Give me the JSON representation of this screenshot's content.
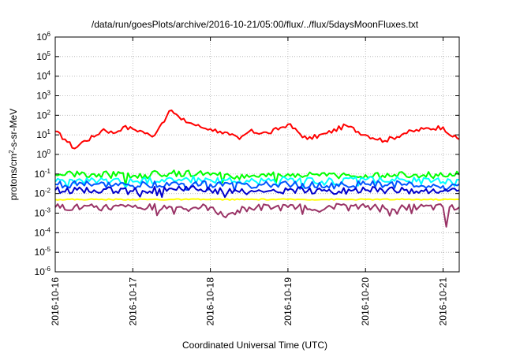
{
  "chart_data": {
    "type": "line",
    "title": "/data/run/goesPlots/archive/2016-10-21/05:00/flux/../flux/5daysMoonFluxes.txt",
    "xlabel": "Coordinated Universal Time (UTC)",
    "ylabel": {
      "pre": "protons/cm",
      "sup": "2",
      "post": "-s-sr-MeV"
    },
    "x_scale": "time",
    "y_scale": "log",
    "xlim": [
      "2016-10-16T00:00",
      "2016-10-21T05:00"
    ],
    "ylim": [
      1e-06,
      1000000.0
    ],
    "grid": true,
    "legend": "none",
    "x_tick_labels": [
      "2016-10-16",
      "2016-10-17",
      "2016-10-18",
      "2016-10-19",
      "2016-10-20",
      "2016-10-21"
    ],
    "y_tick_labels": [
      {
        "base": "10",
        "exp": "-6"
      },
      {
        "base": "10",
        "exp": "-5"
      },
      {
        "base": "10",
        "exp": "-4"
      },
      {
        "base": "10",
        "exp": "-3"
      },
      {
        "base": "10",
        "exp": "-2"
      },
      {
        "base": "10",
        "exp": "-1"
      },
      {
        "base": "10",
        "exp": "0"
      },
      {
        "base": "10",
        "exp": "1"
      },
      {
        "base": "10",
        "exp": "2"
      },
      {
        "base": "10",
        "exp": "3"
      },
      {
        "base": "10",
        "exp": "4"
      },
      {
        "base": "10",
        "exp": "5"
      },
      {
        "base": "10",
        "exp": "6"
      }
    ],
    "series": [
      {
        "color": "#ff0000",
        "x": [
          "2016-10-16T00:00",
          "2016-10-16T03:00",
          "2016-10-16T06:00",
          "2016-10-16T09:00",
          "2016-10-16T12:00",
          "2016-10-16T15:00",
          "2016-10-16T18:00",
          "2016-10-16T21:00",
          "2016-10-17T00:00",
          "2016-10-17T03:00",
          "2016-10-17T06:00",
          "2016-10-17T09:00",
          "2016-10-17T10:30",
          "2016-10-17T12:00",
          "2016-10-17T15:00",
          "2016-10-17T18:00",
          "2016-10-17T21:00",
          "2016-10-18T00:00",
          "2016-10-18T03:00",
          "2016-10-18T06:00",
          "2016-10-18T09:00",
          "2016-10-18T12:00",
          "2016-10-18T18:00",
          "2016-10-19T00:00",
          "2016-10-19T06:00",
          "2016-10-19T12:00",
          "2016-10-19T18:00",
          "2016-10-20T00:00",
          "2016-10-20T06:00",
          "2016-10-20T12:00",
          "2016-10-20T18:00",
          "2016-10-21T00:00",
          "2016-10-21T03:00",
          "2016-10-21T05:00"
        ],
        "y": [
          15,
          6,
          2,
          5,
          8,
          20,
          12,
          25,
          20,
          15,
          8,
          40,
          90,
          180,
          60,
          40,
          25,
          20,
          15,
          10,
          6,
          15,
          12,
          35,
          6,
          12,
          30,
          10,
          5,
          12,
          20,
          25,
          8,
          6
        ]
      },
      {
        "color": "#00ff00",
        "x": [
          "2016-10-16T00:00",
          "2016-10-16T12:00",
          "2016-10-17T00:00",
          "2016-10-17T12:00",
          "2016-10-18T00:00",
          "2016-10-18T12:00",
          "2016-10-19T00:00",
          "2016-10-19T12:00",
          "2016-10-20T00:00",
          "2016-10-20T12:00",
          "2016-10-21T00:00",
          "2016-10-21T05:00"
        ],
        "y": [
          0.09,
          0.1,
          0.08,
          0.11,
          0.09,
          0.07,
          0.1,
          0.08,
          0.09,
          0.1,
          0.08,
          0.09
        ]
      },
      {
        "color": "#00ffff",
        "x": [
          "2016-10-16T00:00",
          "2016-10-16T12:00",
          "2016-10-17T00:00",
          "2016-10-17T12:00",
          "2016-10-18T00:00",
          "2016-10-18T12:00",
          "2016-10-19T00:00",
          "2016-10-19T12:00",
          "2016-10-20T00:00",
          "2016-10-20T12:00",
          "2016-10-21T00:00",
          "2016-10-21T05:00"
        ],
        "y": [
          0.04,
          0.05,
          0.04,
          0.06,
          0.05,
          0.04,
          0.05,
          0.04,
          0.05,
          0.05,
          0.04,
          0.05
        ]
      },
      {
        "color": "#0055ff",
        "x": [
          "2016-10-16T00:00",
          "2016-10-16T12:00",
          "2016-10-17T00:00",
          "2016-10-17T12:00",
          "2016-10-18T00:00",
          "2016-10-18T12:00",
          "2016-10-19T00:00",
          "2016-10-19T12:00",
          "2016-10-20T00:00",
          "2016-10-20T12:00",
          "2016-10-21T00:00",
          "2016-10-21T05:00"
        ],
        "y": [
          0.03,
          0.03,
          0.025,
          0.035,
          0.03,
          0.025,
          0.03,
          0.025,
          0.03,
          0.03,
          0.025,
          0.03
        ]
      },
      {
        "color": "#0000cc",
        "x": [
          "2016-10-16T00:00",
          "2016-10-16T12:00",
          "2016-10-17T00:00",
          "2016-10-17T12:00",
          "2016-10-18T00:00",
          "2016-10-18T12:00",
          "2016-10-19T00:00",
          "2016-10-19T12:00",
          "2016-10-20T00:00",
          "2016-10-20T12:00",
          "2016-10-21T00:00",
          "2016-10-21T05:00"
        ],
        "y": [
          0.015,
          0.015,
          0.013,
          0.018,
          0.015,
          0.012,
          0.015,
          0.013,
          0.015,
          0.015,
          0.013,
          0.015
        ]
      },
      {
        "color": "#ffff00",
        "x": [
          "2016-10-16T00:00",
          "2016-10-16T12:00",
          "2016-10-17T00:00",
          "2016-10-17T12:00",
          "2016-10-18T00:00",
          "2016-10-18T12:00",
          "2016-10-19T00:00",
          "2016-10-19T12:00",
          "2016-10-20T00:00",
          "2016-10-20T12:00",
          "2016-10-21T00:00",
          "2016-10-21T05:00"
        ],
        "y": [
          0.005,
          0.005,
          0.005,
          0.005,
          0.005,
          0.005,
          0.005,
          0.005,
          0.005,
          0.005,
          0.005,
          0.005
        ]
      },
      {
        "color": "#993366",
        "x": [
          "2016-10-16T00:00",
          "2016-10-16T12:00",
          "2016-10-17T00:00",
          "2016-10-17T12:00",
          "2016-10-18T00:00",
          "2016-10-18T04:00",
          "2016-10-18T12:00",
          "2016-10-19T00:00",
          "2016-10-19T12:00",
          "2016-10-20T00:00",
          "2016-10-20T12:00",
          "2016-10-21T00:00",
          "2016-10-21T01:00",
          "2016-10-21T02:00",
          "2016-10-21T05:00"
        ],
        "y": [
          0.002,
          0.002,
          0.002,
          0.002,
          0.002,
          0.0007,
          0.002,
          0.002,
          0.002,
          0.002,
          0.002,
          0.002,
          0.0002,
          0.002,
          0.002
        ]
      }
    ]
  }
}
